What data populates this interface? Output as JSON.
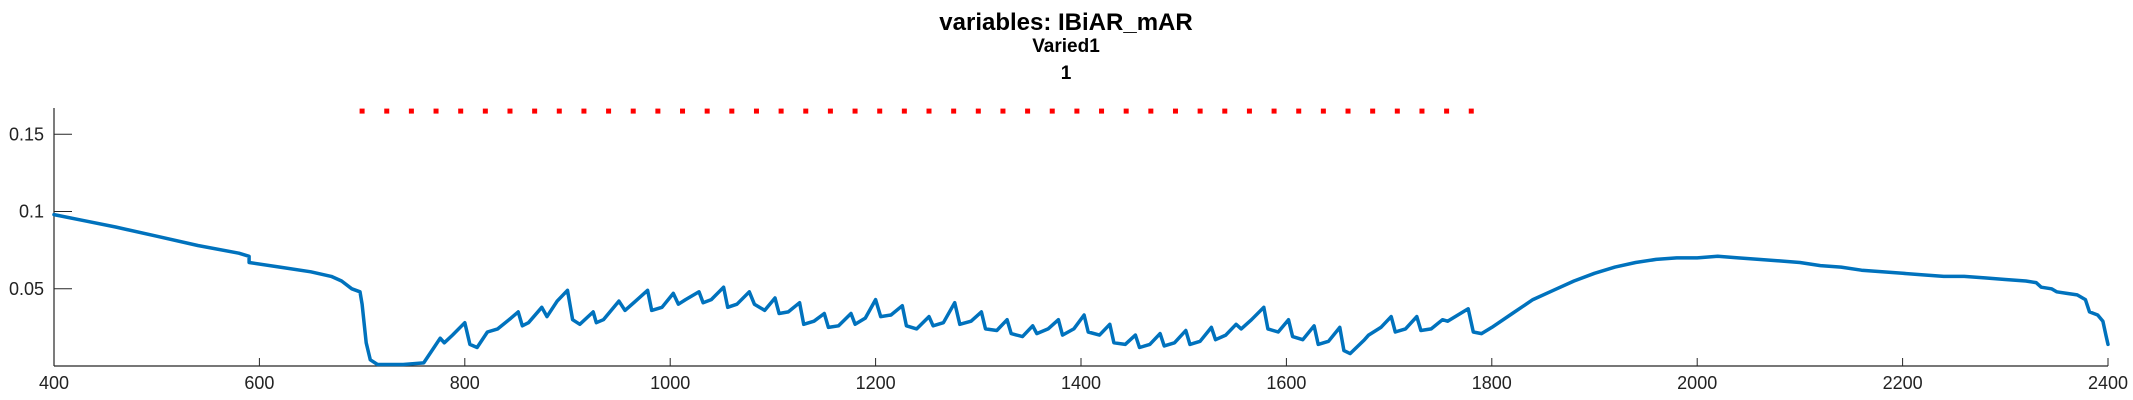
{
  "chart_data": {
    "type": "line",
    "title": "variables: IBiAR_mAR",
    "subtitle_lines": [
      "Varied1",
      "1"
    ],
    "xlabel": "",
    "ylabel": "",
    "xlim": [
      400,
      2400
    ],
    "ylim": [
      0,
      0.167
    ],
    "grid": false,
    "x_ticks": [
      400,
      600,
      800,
      1000,
      1200,
      1400,
      1600,
      1800,
      2000,
      2200,
      2400
    ],
    "y_ticks": [
      0.05,
      0.1,
      0.15
    ],
    "x_tick_labels": [
      "400",
      "600",
      "800",
      "1000",
      "1200",
      "1400",
      "1600",
      "1800",
      "2000",
      "2200",
      "2400"
    ],
    "y_tick_labels": [
      "0.05",
      "0.1",
      "0.15"
    ],
    "marker_series": {
      "color": "#ff0000",
      "y": 0.165,
      "x_start": 700,
      "x_end": 1780,
      "step": 24
    },
    "series": [
      {
        "color": "#0072bd",
        "points": [
          [
            400,
            0.098
          ],
          [
            430,
            0.094
          ],
          [
            460,
            0.09
          ],
          [
            500,
            0.084
          ],
          [
            540,
            0.078
          ],
          [
            580,
            0.073
          ],
          [
            590,
            0.071
          ],
          [
            590,
            0.067
          ],
          [
            620,
            0.064
          ],
          [
            650,
            0.061
          ],
          [
            670,
            0.058
          ],
          [
            680,
            0.055
          ],
          [
            690,
            0.05
          ],
          [
            698,
            0.048
          ],
          [
            700,
            0.04
          ],
          [
            704,
            0.015
          ],
          [
            708,
            0.004
          ],
          [
            715,
            0.001
          ],
          [
            740,
            0.001
          ],
          [
            760,
            0.002
          ],
          [
            770,
            0.012
          ],
          [
            776,
            0.018
          ],
          [
            780,
            0.015
          ],
          [
            788,
            0.02
          ],
          [
            800,
            0.028
          ],
          [
            805,
            0.014
          ],
          [
            812,
            0.012
          ],
          [
            822,
            0.022
          ],
          [
            832,
            0.024
          ],
          [
            845,
            0.031
          ],
          [
            852,
            0.035
          ],
          [
            856,
            0.026
          ],
          [
            862,
            0.028
          ],
          [
            875,
            0.038
          ],
          [
            880,
            0.032
          ],
          [
            890,
            0.042
          ],
          [
            900,
            0.049
          ],
          [
            905,
            0.03
          ],
          [
            912,
            0.027
          ],
          [
            925,
            0.035
          ],
          [
            928,
            0.028
          ],
          [
            935,
            0.03
          ],
          [
            950,
            0.042
          ],
          [
            956,
            0.036
          ],
          [
            968,
            0.043
          ],
          [
            978,
            0.049
          ],
          [
            982,
            0.036
          ],
          [
            992,
            0.038
          ],
          [
            1003,
            0.047
          ],
          [
            1008,
            0.04
          ],
          [
            1015,
            0.043
          ],
          [
            1028,
            0.048
          ],
          [
            1032,
            0.041
          ],
          [
            1040,
            0.043
          ],
          [
            1052,
            0.051
          ],
          [
            1056,
            0.038
          ],
          [
            1065,
            0.04
          ],
          [
            1077,
            0.048
          ],
          [
            1082,
            0.04
          ],
          [
            1092,
            0.036
          ],
          [
            1102,
            0.044
          ],
          [
            1106,
            0.034
          ],
          [
            1115,
            0.035
          ],
          [
            1126,
            0.041
          ],
          [
            1130,
            0.027
          ],
          [
            1140,
            0.029
          ],
          [
            1150,
            0.034
          ],
          [
            1154,
            0.025
          ],
          [
            1164,
            0.026
          ],
          [
            1176,
            0.034
          ],
          [
            1180,
            0.027
          ],
          [
            1190,
            0.031
          ],
          [
            1200,
            0.043
          ],
          [
            1205,
            0.032
          ],
          [
            1215,
            0.033
          ],
          [
            1226,
            0.039
          ],
          [
            1230,
            0.026
          ],
          [
            1240,
            0.024
          ],
          [
            1252,
            0.032
          ],
          [
            1256,
            0.026
          ],
          [
            1266,
            0.028
          ],
          [
            1277,
            0.041
          ],
          [
            1282,
            0.027
          ],
          [
            1293,
            0.029
          ],
          [
            1303,
            0.035
          ],
          [
            1307,
            0.024
          ],
          [
            1318,
            0.023
          ],
          [
            1328,
            0.03
          ],
          [
            1332,
            0.021
          ],
          [
            1343,
            0.019
          ],
          [
            1353,
            0.026
          ],
          [
            1357,
            0.021
          ],
          [
            1368,
            0.024
          ],
          [
            1378,
            0.03
          ],
          [
            1382,
            0.02
          ],
          [
            1393,
            0.024
          ],
          [
            1403,
            0.033
          ],
          [
            1407,
            0.022
          ],
          [
            1418,
            0.02
          ],
          [
            1428,
            0.027
          ],
          [
            1432,
            0.015
          ],
          [
            1443,
            0.014
          ],
          [
            1453,
            0.02
          ],
          [
            1457,
            0.012
          ],
          [
            1467,
            0.014
          ],
          [
            1477,
            0.021
          ],
          [
            1481,
            0.013
          ],
          [
            1491,
            0.015
          ],
          [
            1502,
            0.023
          ],
          [
            1506,
            0.014
          ],
          [
            1516,
            0.016
          ],
          [
            1527,
            0.025
          ],
          [
            1531,
            0.017
          ],
          [
            1541,
            0.02
          ],
          [
            1551,
            0.027
          ],
          [
            1556,
            0.024
          ],
          [
            1566,
            0.03
          ],
          [
            1578,
            0.038
          ],
          [
            1582,
            0.024
          ],
          [
            1592,
            0.022
          ],
          [
            1602,
            0.03
          ],
          [
            1606,
            0.019
          ],
          [
            1616,
            0.017
          ],
          [
            1627,
            0.026
          ],
          [
            1631,
            0.014
          ],
          [
            1641,
            0.016
          ],
          [
            1652,
            0.025
          ],
          [
            1656,
            0.01
          ],
          [
            1662,
            0.008
          ],
          [
            1676,
            0.017
          ],
          [
            1680,
            0.02
          ],
          [
            1692,
            0.025
          ],
          [
            1702,
            0.032
          ],
          [
            1706,
            0.022
          ],
          [
            1716,
            0.024
          ],
          [
            1727,
            0.032
          ],
          [
            1731,
            0.023
          ],
          [
            1741,
            0.024
          ],
          [
            1752,
            0.03
          ],
          [
            1757,
            0.029
          ],
          [
            1767,
            0.033
          ],
          [
            1777,
            0.037
          ],
          [
            1782,
            0.022
          ],
          [
            1790,
            0.021
          ],
          [
            1800,
            0.025
          ],
          [
            1820,
            0.034
          ],
          [
            1840,
            0.043
          ],
          [
            1860,
            0.049
          ],
          [
            1880,
            0.055
          ],
          [
            1900,
            0.06
          ],
          [
            1920,
            0.064
          ],
          [
            1940,
            0.067
          ],
          [
            1960,
            0.069
          ],
          [
            1980,
            0.07
          ],
          [
            2000,
            0.07
          ],
          [
            2020,
            0.071
          ],
          [
            2040,
            0.07
          ],
          [
            2060,
            0.069
          ],
          [
            2080,
            0.068
          ],
          [
            2100,
            0.067
          ],
          [
            2120,
            0.065
          ],
          [
            2140,
            0.064
          ],
          [
            2160,
            0.062
          ],
          [
            2180,
            0.061
          ],
          [
            2200,
            0.06
          ],
          [
            2220,
            0.059
          ],
          [
            2240,
            0.058
          ],
          [
            2260,
            0.058
          ],
          [
            2280,
            0.057
          ],
          [
            2300,
            0.056
          ],
          [
            2320,
            0.055
          ],
          [
            2330,
            0.054
          ],
          [
            2335,
            0.051
          ],
          [
            2345,
            0.05
          ],
          [
            2350,
            0.048
          ],
          [
            2360,
            0.047
          ],
          [
            2370,
            0.046
          ],
          [
            2378,
            0.043
          ],
          [
            2382,
            0.035
          ],
          [
            2390,
            0.033
          ],
          [
            2395,
            0.029
          ],
          [
            2398,
            0.02
          ],
          [
            2400,
            0.014
          ]
        ]
      }
    ]
  }
}
